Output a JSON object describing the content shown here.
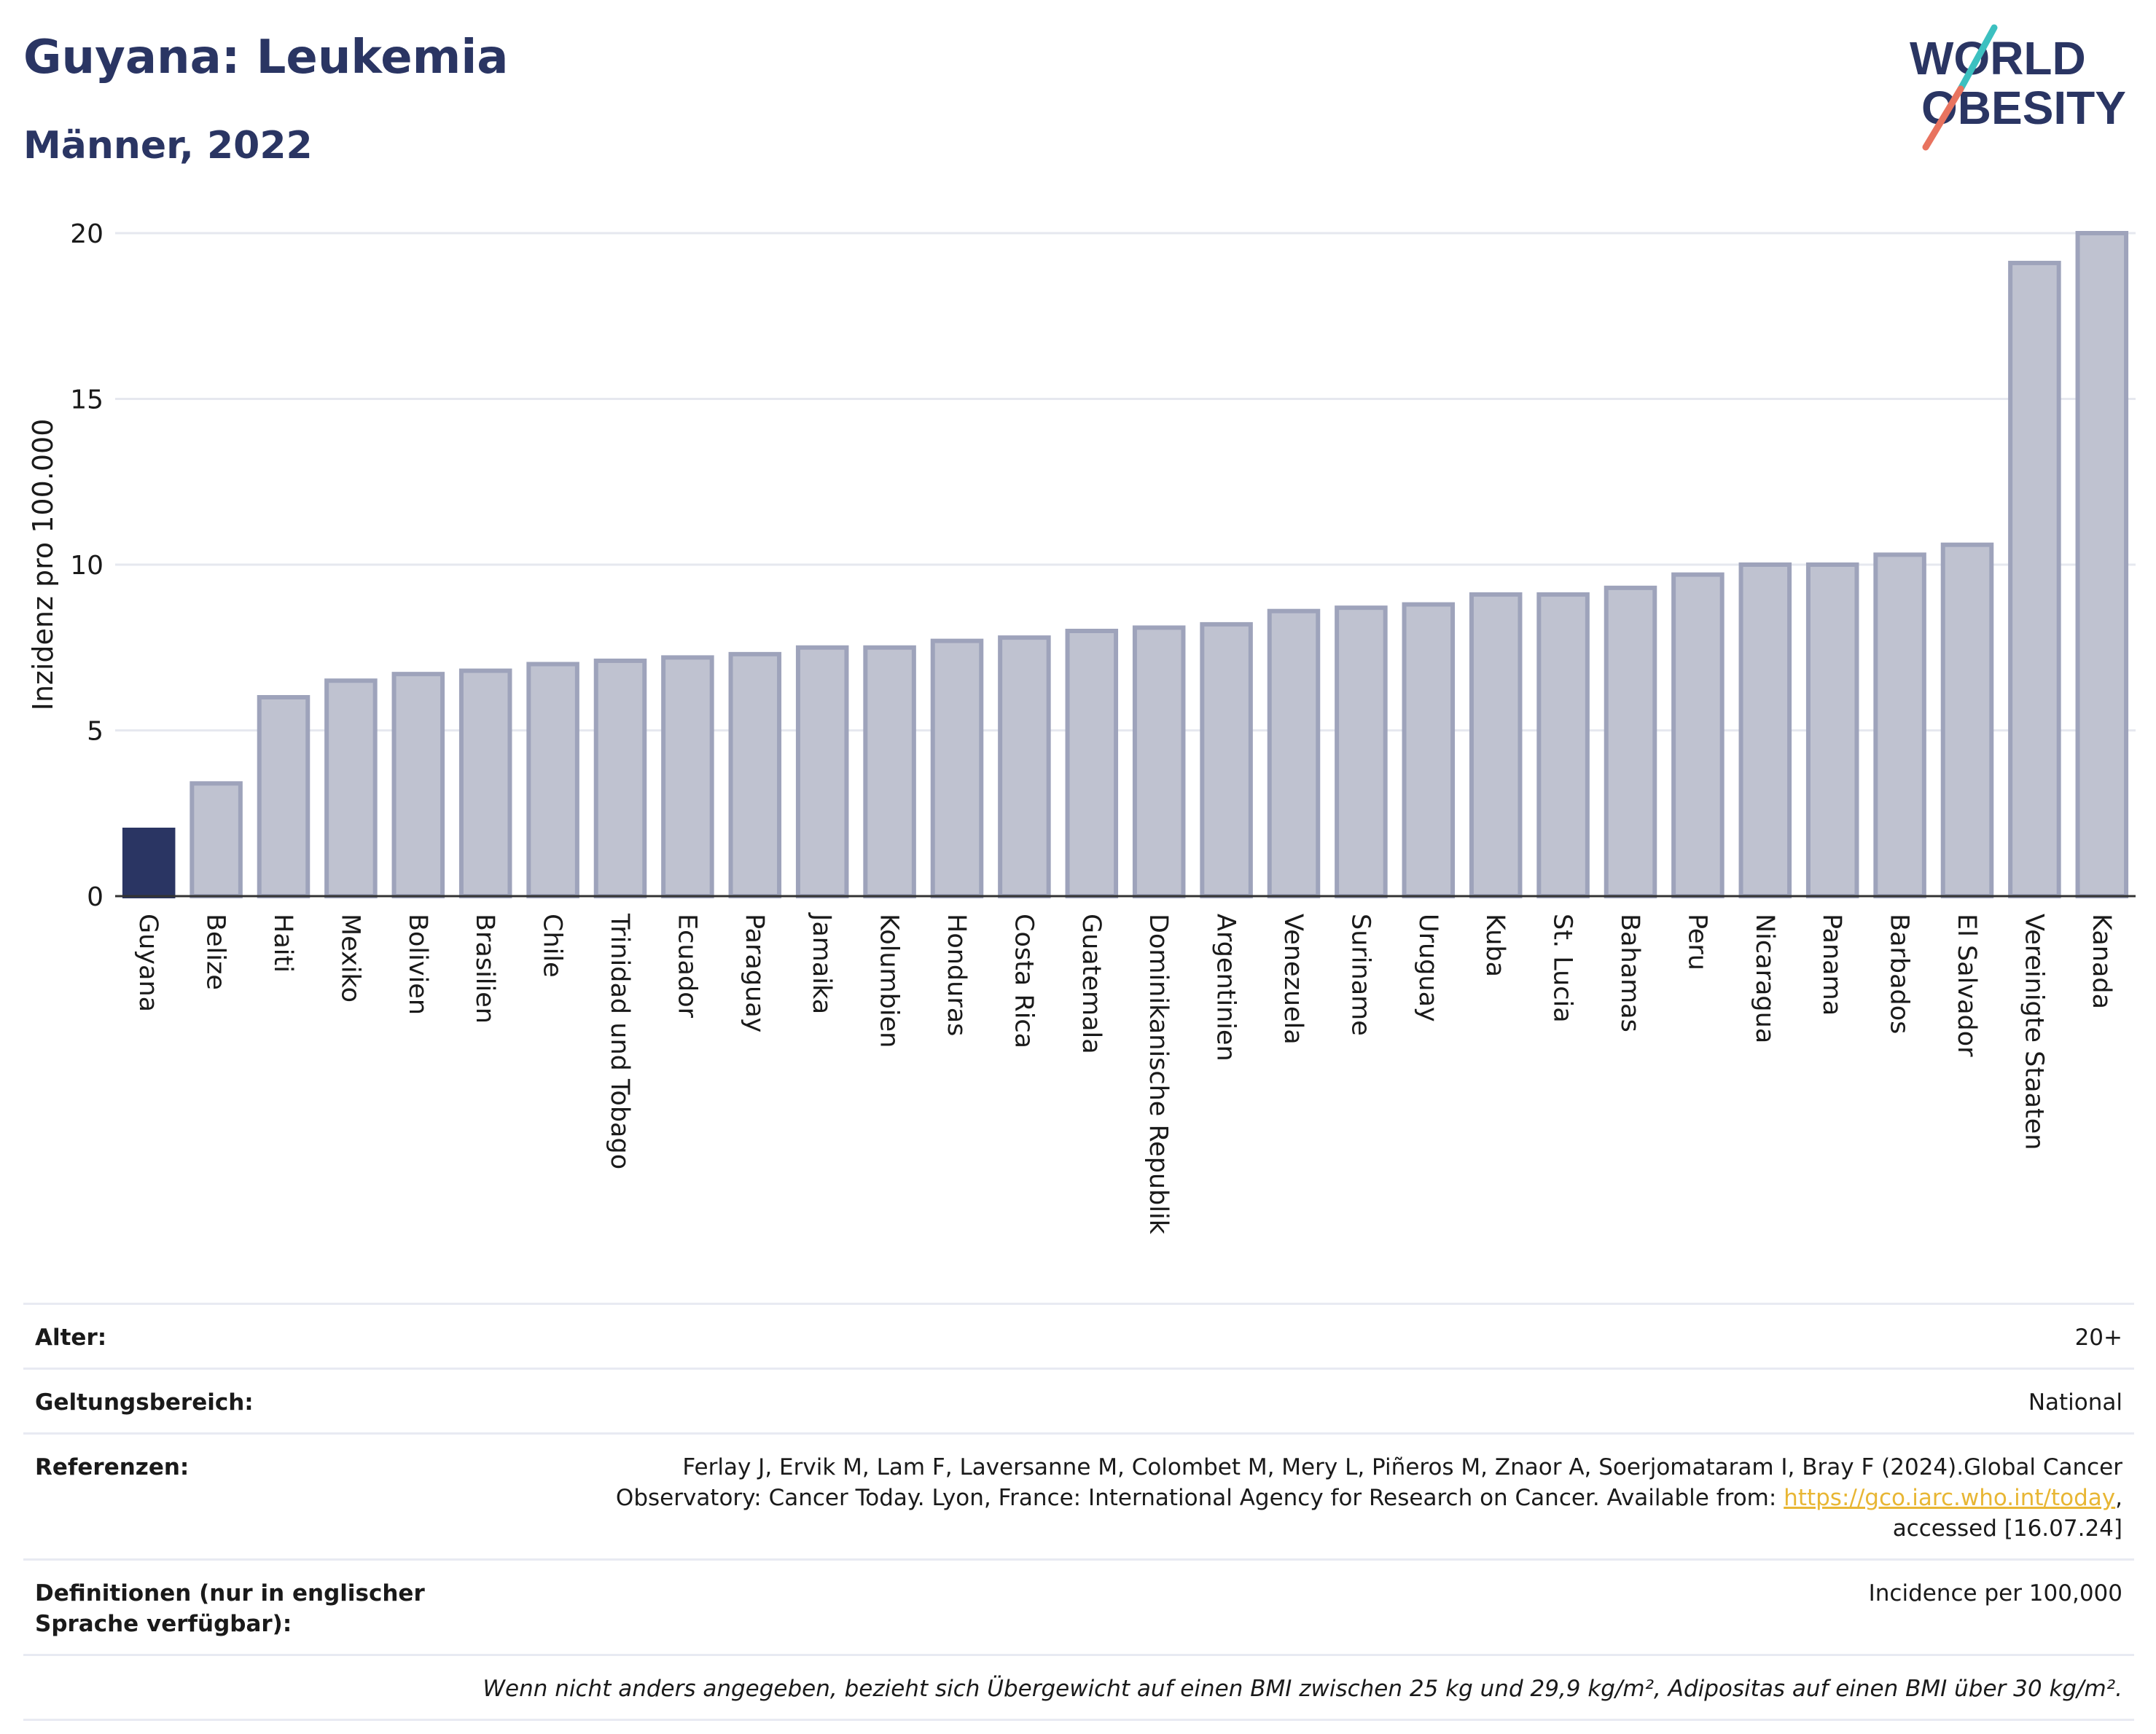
{
  "header": {
    "title": "Guyana: Leukemia",
    "subtitle": "Männer, 2022",
    "logo_line1": "WORLD",
    "logo_line2": "OBESITY"
  },
  "colors": {
    "highlight": "#2a3563",
    "bar_fill": "#bfc2d0",
    "bar_stroke": "#9ea3bb",
    "title": "#2a3563",
    "link": "#e8b634",
    "logo_teal": "#3cc0c0",
    "logo_coral": "#e8735f"
  },
  "chart_data": {
    "type": "bar",
    "ylabel": "Inzidenz pro 100.000",
    "xlabel": "",
    "ylim": [
      0,
      20
    ],
    "yticks": [
      0,
      5,
      10,
      15,
      20
    ],
    "grid": true,
    "highlight": "Guyana",
    "categories": [
      "Guyana",
      "Belize",
      "Haiti",
      "Mexiko",
      "Bolivien",
      "Brasilien",
      "Chile",
      "Trinidad und Tobago",
      "Ecuador",
      "Paraguay",
      "Jamaika",
      "Kolumbien",
      "Honduras",
      "Costa Rica",
      "Guatemala",
      "Dominikanische Republik",
      "Argentinien",
      "Venezuela",
      "Suriname",
      "Uruguay",
      "Kuba",
      "St. Lucia",
      "Bahamas",
      "Peru",
      "Nicaragua",
      "Panama",
      "Barbados",
      "El Salvador",
      "Vereinigte Staaten",
      "Kanada"
    ],
    "values": [
      2.0,
      3.4,
      6.0,
      6.5,
      6.7,
      6.8,
      7.0,
      7.1,
      7.2,
      7.3,
      7.5,
      7.5,
      7.7,
      7.8,
      8.0,
      8.1,
      8.2,
      8.6,
      8.7,
      8.8,
      9.1,
      9.1,
      9.3,
      9.7,
      10.0,
      10.0,
      10.3,
      10.6,
      19.1,
      20.0
    ]
  },
  "meta": {
    "age_label": "Alter:",
    "age_value": "20+",
    "scope_label": "Geltungsbereich:",
    "scope_value": "National",
    "ref_label": "Referenzen:",
    "ref_text_1": "Ferlay J, Ervik M, Lam F, Laversanne M, Colombet M, Mery L, Piñeros M, Znaor A, Soerjomataram I, Bray F (2024).Global Cancer",
    "ref_text_2": "Observatory: Cancer Today. Lyon, France: International Agency for Research on Cancer. Available from: ",
    "ref_link": "https://gco.iarc.who.int/today",
    "ref_text_3": ",",
    "ref_text_4": "accessed [16.07.24]",
    "def_label": "Definitionen (nur in englischer Sprache verfügbar):",
    "def_value": "Incidence per 100,000",
    "note": "Wenn nicht anders angegeben, bezieht sich Übergewicht auf einen BMI zwischen 25 kg und 29,9 kg/m², Adipositas auf einen BMI über 30 kg/m²."
  }
}
